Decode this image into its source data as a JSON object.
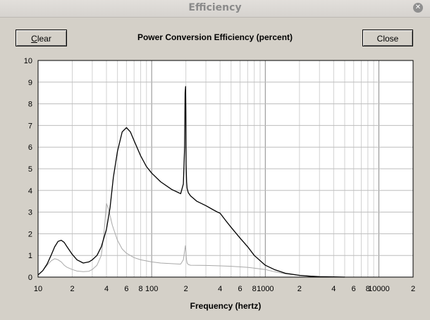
{
  "window": {
    "title": "Efficiency"
  },
  "buttons": {
    "clear_label": "lear",
    "clear_mnemonic": "C",
    "close_label": "Close"
  },
  "chart_data": {
    "type": "line",
    "title": "Power Conversion Efficiency (percent)",
    "xlabel": "Frequency (hertz)",
    "ylabel": "",
    "xscale": "log",
    "xlim": [
      10,
      20000
    ],
    "ylim": [
      0,
      10
    ],
    "grid": true,
    "y_ticks": [
      "0",
      "1",
      "2",
      "3",
      "4",
      "5",
      "6",
      "7",
      "8",
      "9",
      "10"
    ],
    "x_ticks": [
      {
        "value": 10,
        "label": "10"
      },
      {
        "value": 20,
        "label": "2"
      },
      {
        "value": 40,
        "label": "4"
      },
      {
        "value": 60,
        "label": "6"
      },
      {
        "value": 80,
        "label": "8"
      },
      {
        "value": 100,
        "label": "100"
      },
      {
        "value": 200,
        "label": "2"
      },
      {
        "value": 400,
        "label": "4"
      },
      {
        "value": 600,
        "label": "6"
      },
      {
        "value": 800,
        "label": "8"
      },
      {
        "value": 1000,
        "label": "1000"
      },
      {
        "value": 2000,
        "label": "2"
      },
      {
        "value": 4000,
        "label": "4"
      },
      {
        "value": 6000,
        "label": "6"
      },
      {
        "value": 8000,
        "label": "8"
      },
      {
        "value": 10000,
        "label": "10000"
      },
      {
        "value": 20000,
        "label": "2"
      }
    ],
    "series": [
      {
        "color": "#000000",
        "x": [
          10,
          11,
          12,
          13,
          14,
          15,
          16,
          17,
          18,
          20,
          22,
          25,
          28,
          30,
          33,
          36,
          40,
          43,
          46,
          50,
          55,
          60,
          65,
          70,
          80,
          90,
          100,
          120,
          150,
          180,
          190,
          195,
          197,
          199,
          200,
          201,
          203,
          205,
          210,
          220,
          250,
          300,
          350,
          380,
          400,
          450,
          500,
          600,
          700,
          800,
          1000,
          1200,
          1500,
          2000,
          2500,
          3000,
          4000,
          5000
        ],
        "y": [
          0.1,
          0.3,
          0.6,
          1.0,
          1.4,
          1.65,
          1.7,
          1.6,
          1.4,
          1.05,
          0.8,
          0.65,
          0.7,
          0.8,
          1.0,
          1.4,
          2.2,
          3.2,
          4.6,
          5.8,
          6.7,
          6.9,
          6.7,
          6.3,
          5.6,
          5.1,
          4.8,
          4.4,
          4.05,
          3.85,
          4.3,
          6.0,
          8.5,
          8.8,
          7.6,
          5.2,
          4.4,
          4.1,
          3.9,
          3.75,
          3.5,
          3.3,
          3.1,
          3.0,
          2.95,
          2.6,
          2.3,
          1.8,
          1.4,
          1.0,
          0.55,
          0.35,
          0.18,
          0.08,
          0.04,
          0.02,
          0.01,
          0.0
        ]
      },
      {
        "color": "#a8a8a8",
        "x": [
          10,
          11,
          12,
          13,
          14,
          15,
          16,
          17,
          18,
          20,
          22,
          25,
          28,
          30,
          33,
          36,
          38,
          40,
          42,
          45,
          50,
          55,
          60,
          70,
          80,
          100,
          120,
          150,
          180,
          190,
          195,
          198,
          200,
          202,
          205,
          210,
          220,
          300,
          400,
          500,
          700,
          1000,
          1200,
          1500,
          2000,
          3000,
          4000,
          5000
        ],
        "y": [
          0.1,
          0.3,
          0.55,
          0.75,
          0.85,
          0.8,
          0.7,
          0.55,
          0.45,
          0.35,
          0.28,
          0.25,
          0.27,
          0.35,
          0.55,
          1.0,
          2.0,
          3.4,
          3.1,
          2.4,
          1.7,
          1.3,
          1.1,
          0.9,
          0.8,
          0.7,
          0.65,
          0.62,
          0.6,
          0.8,
          1.2,
          1.45,
          1.2,
          0.85,
          0.65,
          0.58,
          0.55,
          0.54,
          0.52,
          0.5,
          0.45,
          0.35,
          0.25,
          0.15,
          0.08,
          0.03,
          0.01,
          0.0
        ]
      }
    ]
  }
}
